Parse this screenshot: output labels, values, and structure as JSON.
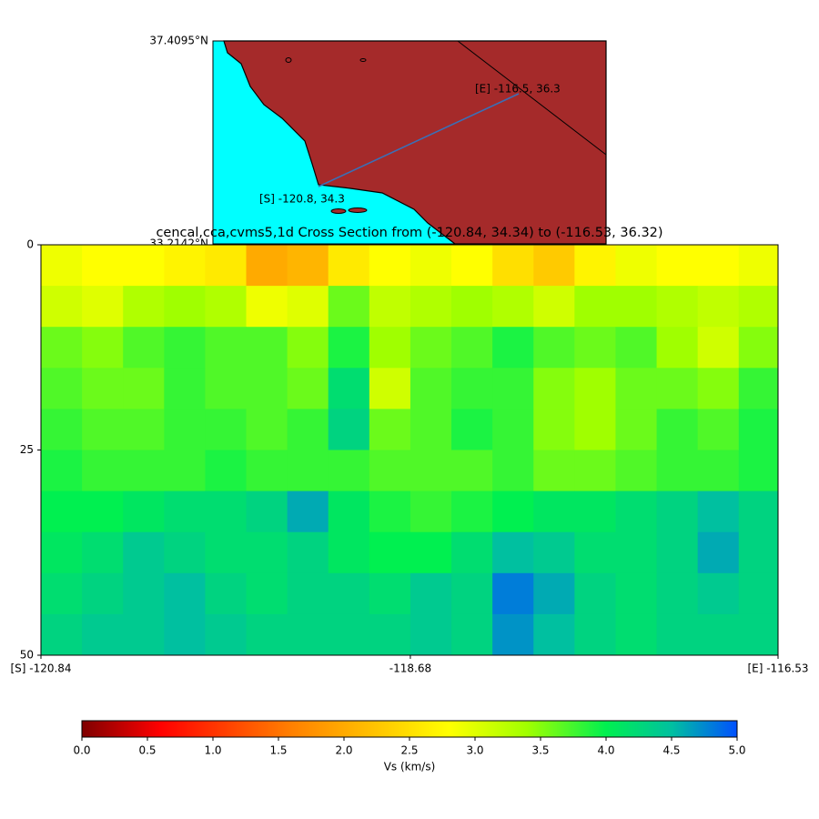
{
  "chart_data": {
    "type": "heatmap",
    "title": "cencal,cca,cvms5,1d Cross Section from (-120.84, 34.34) to (-116.53, 36.32)",
    "inset": {
      "lat_top_label": "37.4095°N",
      "lat_bottom_label": "33.2142°N",
      "start_label": "[S] -120.8, 34.3",
      "end_label": "[E] -116.5, 36.3"
    },
    "x": [
      -120.72,
      -120.48,
      -120.24,
      -120.0,
      -119.76,
      -119.52,
      -119.28,
      -119.04,
      -118.8,
      -118.56,
      -118.32,
      -118.08,
      -117.84,
      -117.6,
      -117.36,
      -117.12,
      -116.88,
      -116.64
    ],
    "y": [
      2.5,
      7.5,
      12.5,
      17.5,
      22.5,
      27.5,
      32.5,
      37.5,
      42.5,
      47.5
    ],
    "z": [
      [
        2.9,
        2.8,
        2.8,
        2.7,
        2.6,
        2.0,
        2.1,
        2.6,
        2.8,
        2.9,
        2.8,
        2.5,
        2.3,
        2.7,
        2.9,
        2.8,
        2.8,
        2.9
      ],
      [
        3.1,
        3.0,
        3.3,
        3.4,
        3.3,
        2.9,
        3.0,
        3.6,
        3.2,
        3.3,
        3.4,
        3.3,
        3.1,
        3.4,
        3.4,
        3.3,
        3.2,
        3.3
      ],
      [
        3.6,
        3.5,
        3.7,
        3.8,
        3.7,
        3.7,
        3.5,
        3.9,
        3.4,
        3.6,
        3.7,
        3.9,
        3.7,
        3.6,
        3.7,
        3.4,
        3.1,
        3.5
      ],
      [
        3.7,
        3.6,
        3.6,
        3.8,
        3.7,
        3.7,
        3.6,
        4.2,
        3.1,
        3.7,
        3.8,
        3.8,
        3.5,
        3.4,
        3.6,
        3.6,
        3.5,
        3.8
      ],
      [
        3.8,
        3.7,
        3.7,
        3.8,
        3.8,
        3.7,
        3.8,
        4.3,
        3.6,
        3.7,
        3.9,
        3.8,
        3.5,
        3.4,
        3.6,
        3.8,
        3.7,
        3.9
      ],
      [
        3.9,
        3.8,
        3.8,
        3.8,
        3.9,
        3.8,
        3.8,
        3.8,
        3.7,
        3.7,
        3.7,
        3.8,
        3.6,
        3.6,
        3.7,
        3.8,
        3.8,
        3.9
      ],
      [
        4.0,
        4.0,
        4.1,
        4.2,
        4.2,
        4.3,
        4.6,
        4.1,
        3.9,
        3.8,
        3.9,
        4.0,
        4.1,
        4.1,
        4.2,
        4.3,
        4.5,
        4.3
      ],
      [
        4.1,
        4.2,
        4.4,
        4.3,
        4.2,
        4.2,
        4.3,
        4.1,
        4.0,
        4.0,
        4.2,
        4.5,
        4.4,
        4.2,
        4.2,
        4.3,
        4.6,
        4.3
      ],
      [
        4.2,
        4.3,
        4.4,
        4.5,
        4.3,
        4.2,
        4.3,
        4.3,
        4.2,
        4.4,
        4.3,
        4.8,
        4.6,
        4.3,
        4.2,
        4.3,
        4.4,
        4.3
      ],
      [
        4.3,
        4.4,
        4.4,
        4.5,
        4.4,
        4.3,
        4.3,
        4.3,
        4.3,
        4.4,
        4.3,
        4.7,
        4.5,
        4.3,
        4.2,
        4.3,
        4.3,
        4.3
      ]
    ],
    "xlim": [
      -120.84,
      -116.53
    ],
    "xticks": [
      {
        "value": -120.84,
        "label": "[S] -120.84"
      },
      -118.68,
      {
        "value": -116.53,
        "label": "[E] -116.53"
      }
    ],
    "ylim": [
      0,
      50
    ],
    "invert_y": true,
    "yticks": [
      0,
      25,
      50
    ],
    "colorbar_label": "Vs (km/s)",
    "clim": [
      0,
      5
    ],
    "cticks": [
      {
        "value": 0,
        "label": "0.0"
      },
      0.5,
      {
        "value": 1,
        "label": "1.0"
      },
      1.5,
      {
        "value": 2,
        "label": "2.0"
      },
      2.5,
      {
        "value": 3,
        "label": "3.0"
      },
      3.5,
      {
        "value": 4,
        "label": "4.0"
      },
      4.5,
      {
        "value": 5,
        "label": "5.0"
      }
    ],
    "colormap": [
      {
        "value": 0,
        "color": "#7f0000"
      },
      {
        "value": 0.6,
        "color": "#ff0000"
      },
      {
        "value": 1.6,
        "color": "#ff8000"
      },
      {
        "value": 2.8,
        "color": "#ffff00"
      },
      {
        "value": 3.4,
        "color": "#a0ff00"
      },
      {
        "value": 4.0,
        "color": "#00f050"
      },
      {
        "value": 4.5,
        "color": "#00c0a0"
      },
      {
        "value": 5,
        "color": "#0050ff"
      }
    ]
  }
}
